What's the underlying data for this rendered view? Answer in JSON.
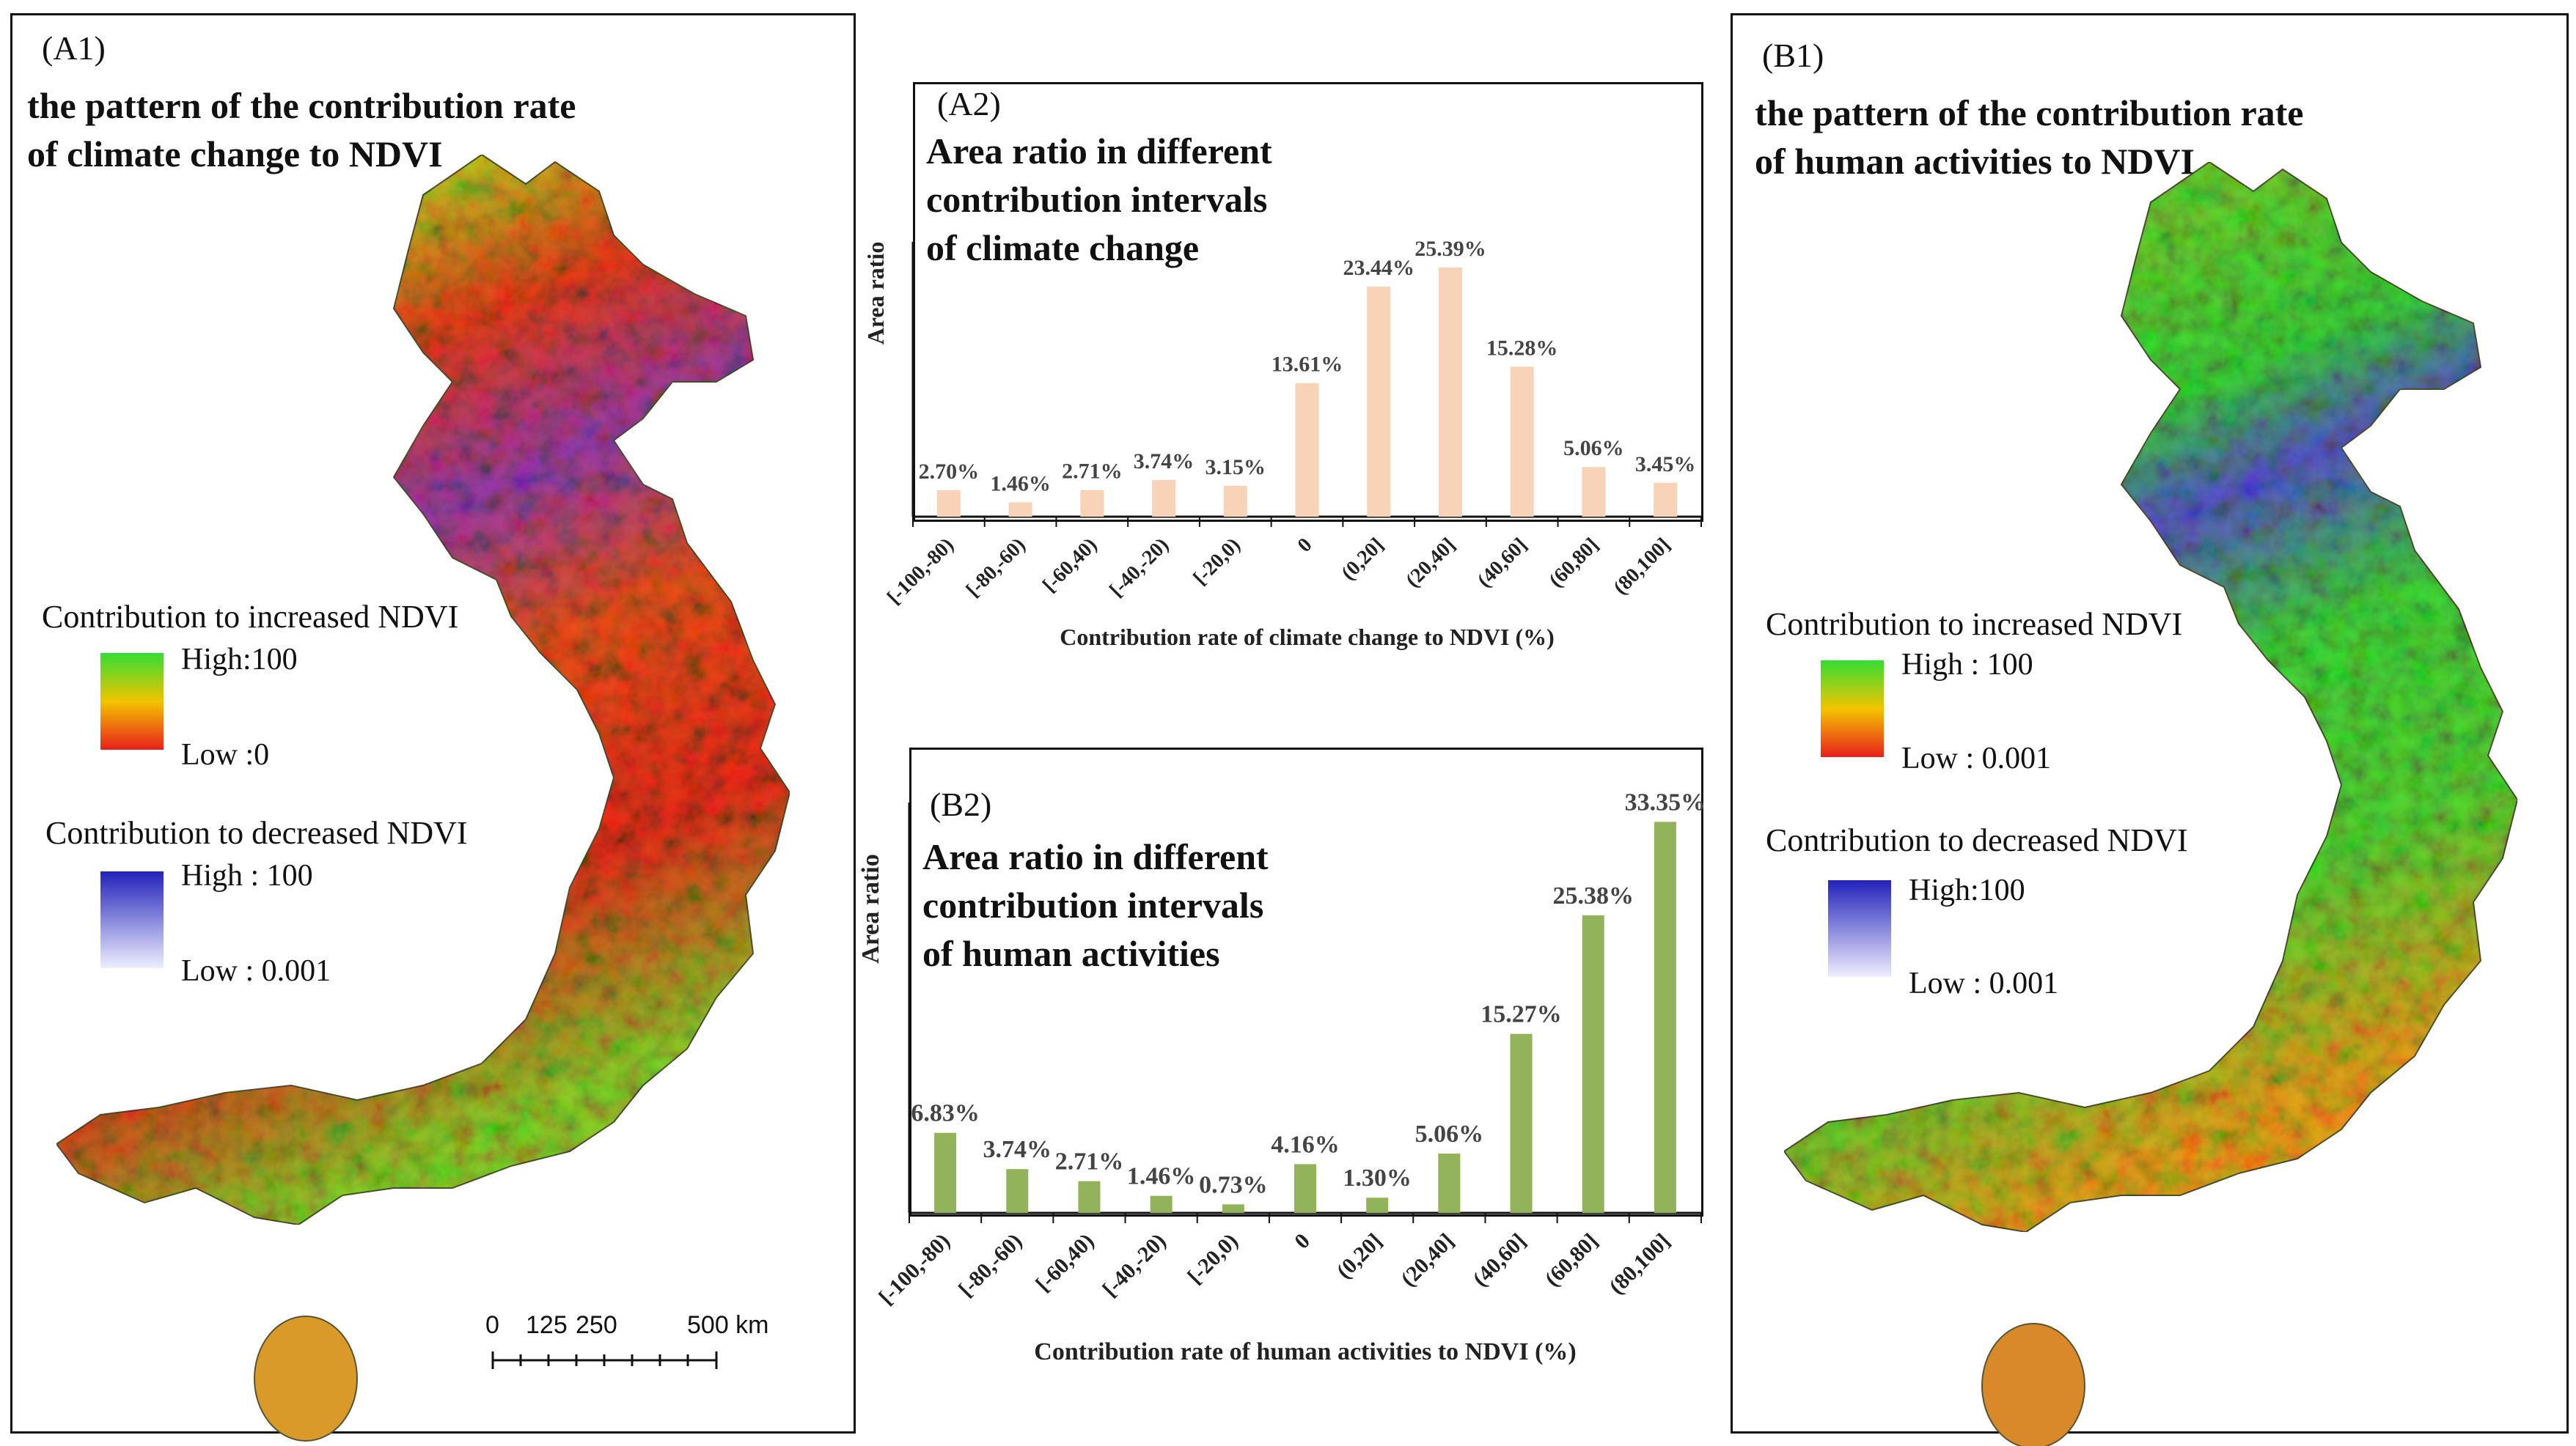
{
  "map_a1": {
    "label": "(A1)",
    "title": "the pattern of the contribution rate\nof climate change to NDVI",
    "legend_inc_heading": "Contribution to increased NDVI",
    "legend_inc_high": "High:100",
    "legend_inc_low": "Low :0",
    "legend_dec_heading": "Contribution to decreased NDVI",
    "legend_dec_high": "High : 100",
    "legend_dec_low": "Low : 0.001",
    "scale_labels": [
      "0",
      "125",
      "250",
      "500 km"
    ],
    "colors": {
      "high": "#33dd33",
      "mid": "#f2a900",
      "low": "#e8201b",
      "dec_high": "#2222bb",
      "dec_low": "#e6e6ff"
    }
  },
  "map_b1": {
    "label": "(B1)",
    "title": "the pattern of the contribution rate\nof human activities to NDVI",
    "legend_inc_heading": "Contribution to increased NDVI",
    "legend_inc_high": "High : 100",
    "legend_inc_low": "Low : 0.001",
    "legend_dec_heading": "Contribution to decreased NDVI",
    "legend_dec_high": "High:100",
    "legend_dec_low": "Low : 0.001"
  },
  "chart_data": [
    {
      "id": "A2",
      "type": "bar",
      "panel_label": "(A2)",
      "title": "Area ratio in different\ncontribution intervals\nof climate change",
      "ylabel": "Area ratio",
      "xlabel": "Contribution rate of climate change to NDVI (%)",
      "categories": [
        "[-100,-80)",
        "[-80,-60)",
        "[-60,40)",
        "[-40,-20)",
        "[-20,0)",
        "0",
        "(0,20]",
        "(20,40]",
        "(40,60]",
        "(60,80]",
        "(80,100]"
      ],
      "values": [
        2.7,
        1.46,
        2.71,
        3.74,
        3.15,
        13.61,
        23.44,
        25.39,
        15.28,
        5.06,
        3.45
      ],
      "value_labels": [
        "2.70%",
        "1.46%",
        "2.71%",
        "3.74%",
        "3.15%",
        "13.61%",
        "23.44%",
        "25.39%",
        "15.28%",
        "5.06%",
        "3.45%"
      ],
      "ylim": [
        0,
        28
      ],
      "bar_color": "#f9d3b8",
      "grid": false
    },
    {
      "id": "B2",
      "type": "bar",
      "panel_label": "(B2)",
      "title": "Area ratio in different\ncontribution intervals\nof human activities",
      "ylabel": "Area ratio",
      "xlabel": "Contribution rate of human activities to NDVI (%)",
      "categories": [
        "[-100,-80)",
        "[-80,-60)",
        "[-60,40)",
        "[-40,-20)",
        "[-20,0)",
        "0",
        "(0,20]",
        "(20,40]",
        "(40,60]",
        "(60,80]",
        "(80,100]"
      ],
      "values": [
        6.83,
        3.74,
        2.71,
        1.46,
        0.73,
        4.16,
        1.3,
        5.06,
        15.27,
        25.38,
        33.35
      ],
      "value_labels": [
        "6.83%",
        "3.74%",
        "2.71%",
        "1.46%",
        "0.73%",
        "4.16%",
        "1.30%",
        "5.06%",
        "15.27%",
        "25.38%",
        "33.35%"
      ],
      "ylim": [
        0,
        35
      ],
      "bar_color": "#93b35a",
      "grid": false
    }
  ]
}
